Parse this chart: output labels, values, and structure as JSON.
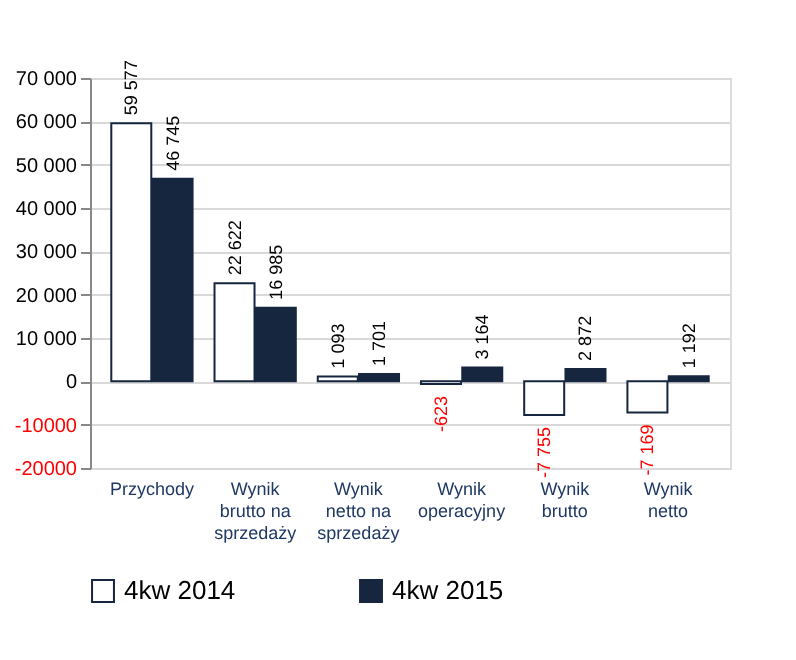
{
  "chart_data": {
    "type": "bar",
    "categories": [
      "Przychody",
      "Wynik brutto na sprzedaży",
      "Wynik netto na sprzedaży",
      "Wynik operacyjny",
      "Wynik brutto",
      "Wynik netto"
    ],
    "series": [
      {
        "name": "4kw 2014",
        "color": "#ffffff",
        "values": [
          59577,
          22622,
          1093,
          -623,
          -7755,
          -7169
        ],
        "value_labels": [
          "59 577",
          "22 622",
          "1 093",
          "-623",
          "-7 755",
          "-7 169"
        ]
      },
      {
        "name": "4kw 2015",
        "color": "#16263f",
        "values": [
          46745,
          16985,
          1701,
          3164,
          2872,
          1192
        ],
        "value_labels": [
          "46 745",
          "16 985",
          "1 701",
          "3 164",
          "2 872",
          "1 192"
        ]
      }
    ],
    "ylim": [
      -20000,
      70000
    ],
    "yticks": [
      -20000,
      -10000,
      {
        "value": 0,
        "label": "0"
      },
      {
        "value": 10000,
        "label": "10 000"
      },
      {
        "value": 20000,
        "label": "20 000"
      },
      {
        "value": 30000,
        "label": "30 000"
      },
      {
        "value": 40000,
        "label": "40 000"
      },
      {
        "value": 50000,
        "label": "50 000"
      },
      {
        "value": 60000,
        "label": "60 000"
      },
      {
        "value": 70000,
        "label": "70 000"
      }
    ],
    "grid": "y",
    "legend": "bottom"
  }
}
